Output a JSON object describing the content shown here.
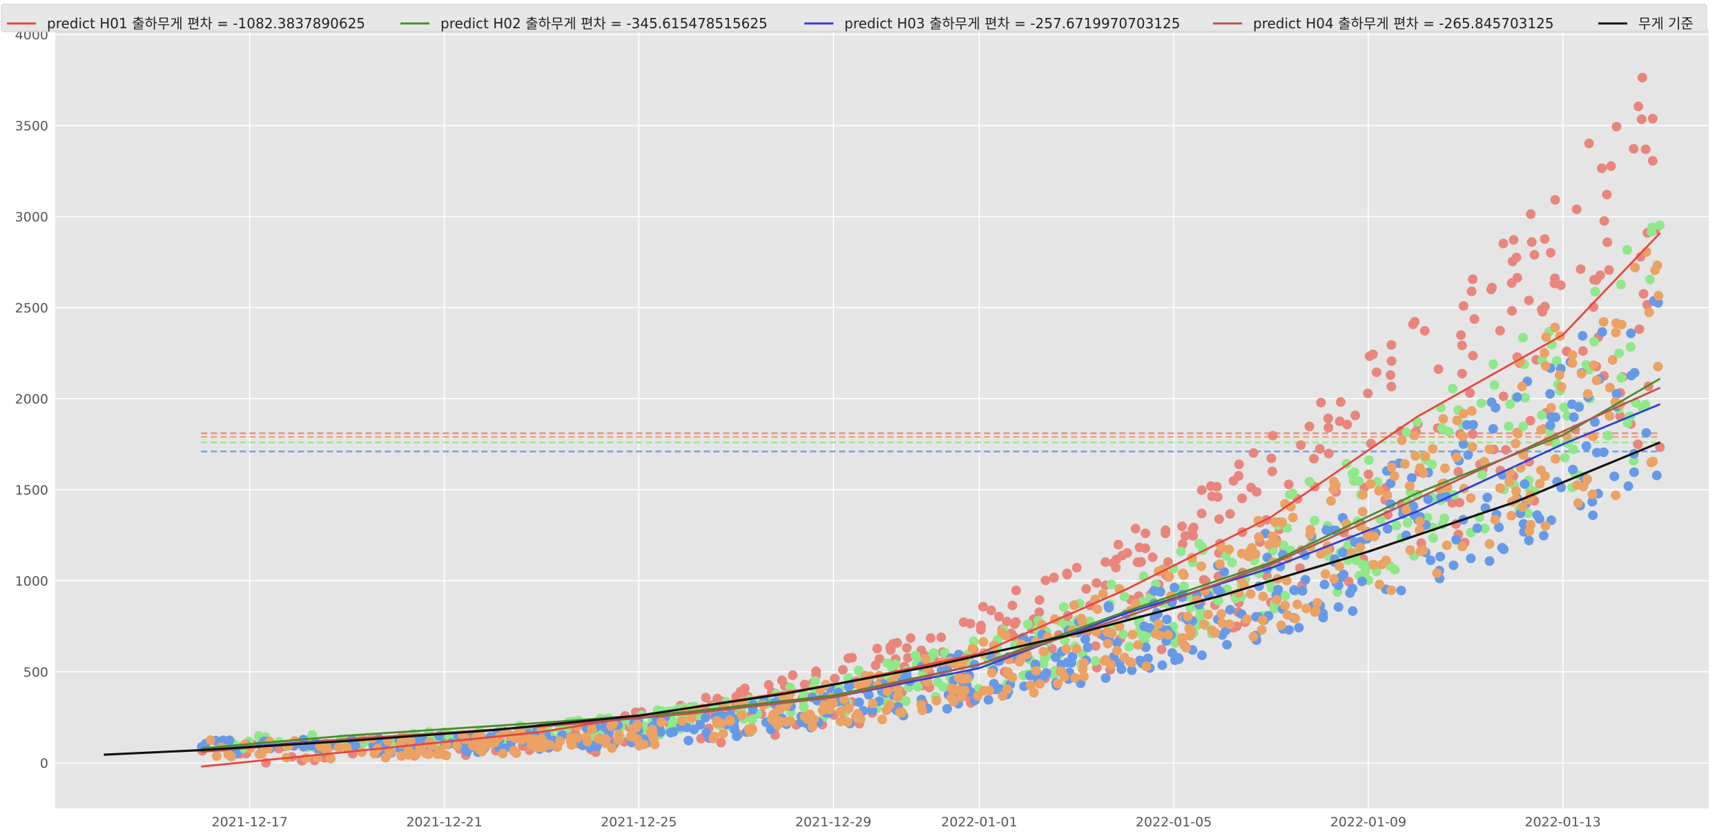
{
  "chart_data": {
    "type": "scatter",
    "style": "ggplot",
    "grid": true,
    "legend_position": "top",
    "xlabel": "",
    "ylabel": "",
    "xlim": [
      "2021-12-13",
      "2022-01-16"
    ],
    "ylim": [
      -250,
      4030
    ],
    "x_ticks": [
      "2021-12-17",
      "2021-12-21",
      "2021-12-25",
      "2021-12-29",
      "2022-01-01",
      "2022-01-05",
      "2022-01-09",
      "2022-01-13"
    ],
    "y_ticks": [
      0,
      500,
      1000,
      1500,
      2000,
      2500,
      3000,
      3500,
      4000
    ],
    "legend": [
      {
        "label": "predict H01 출하무게 편차 = -1082.3837890625",
        "color": "#e8453c"
      },
      {
        "label": "predict H02 출하무게 편차 = -345.615478515625",
        "color": "#4a8c2a"
      },
      {
        "label": "predict H03 출하무게 편차 = -257.6719970703125",
        "color": "#2f3fd6"
      },
      {
        "label": "predict H04 출하무게 편차 = -265.845703125",
        "color": "#b5554e"
      },
      {
        "label": "무게 기준",
        "color": "#111111"
      }
    ],
    "scatter_series": [
      {
        "name": "H01 scatter",
        "color": "#e8867d",
        "band_low": [
          -30,
          1300
        ],
        "band_high": [
          120,
          3900
        ]
      },
      {
        "name": "H02 scatter",
        "color": "#8fe88a",
        "band_low": [
          60,
          1500
        ],
        "band_high": [
          150,
          3000
        ]
      },
      {
        "name": "H03 scatter",
        "color": "#6699e8",
        "band_low": [
          20,
          1300
        ],
        "band_high": [
          130,
          2700
        ]
      },
      {
        "name": "H04 scatter",
        "color": "#eba264",
        "band_low": [
          0,
          1350
        ],
        "band_high": [
          130,
          2950
        ]
      }
    ],
    "line_series": [
      {
        "name": "predict H01",
        "color": "#e8453c",
        "x": [
          "2021-12-16",
          "2021-12-19",
          "2021-12-23",
          "2021-12-26",
          "2021-12-29",
          "2022-01-01",
          "2022-01-04",
          "2022-01-07",
          "2022-01-10",
          "2022-01-13",
          "2022-01-15"
        ],
        "y": [
          -20,
          60,
          170,
          300,
          430,
          600,
          950,
          1350,
          1900,
          2350,
          2910
        ]
      },
      {
        "name": "predict H02",
        "color": "#4a8c2a",
        "x": [
          "2021-12-16",
          "2021-12-19",
          "2021-12-23",
          "2021-12-26",
          "2021-12-29",
          "2022-01-01",
          "2022-01-04",
          "2022-01-07",
          "2022-01-10",
          "2022-01-13",
          "2022-01-15"
        ],
        "y": [
          80,
          150,
          220,
          280,
          370,
          540,
          830,
          1100,
          1480,
          1800,
          2110
        ]
      },
      {
        "name": "predict H03",
        "color": "#2f3fd6",
        "x": [
          "2021-12-16",
          "2021-12-19",
          "2021-12-23",
          "2021-12-26",
          "2021-12-29",
          "2022-01-01",
          "2022-01-04",
          "2022-01-07",
          "2022-01-10",
          "2022-01-13",
          "2022-01-15"
        ],
        "y": [
          70,
          130,
          200,
          270,
          360,
          520,
          820,
          1070,
          1380,
          1750,
          1970
        ]
      },
      {
        "name": "predict H04",
        "color": "#b5554e",
        "x": [
          "2021-12-16",
          "2021-12-19",
          "2021-12-23",
          "2021-12-26",
          "2021-12-29",
          "2022-01-01",
          "2022-01-04",
          "2022-01-07",
          "2022-01-10",
          "2022-01-13",
          "2022-01-15"
        ],
        "y": [
          60,
          130,
          200,
          270,
          360,
          540,
          800,
          1090,
          1450,
          1820,
          2060
        ]
      },
      {
        "name": "무게 기준",
        "color": "#111111",
        "x": [
          "2021-12-14",
          "2021-12-16",
          "2021-12-19",
          "2021-12-22",
          "2021-12-25",
          "2021-12-28",
          "2021-12-31",
          "2022-01-03",
          "2022-01-06",
          "2022-01-09",
          "2022-01-12",
          "2022-01-15"
        ],
        "y": [
          45,
          70,
          120,
          180,
          260,
          380,
          530,
          710,
          920,
          1160,
          1430,
          1760
        ]
      }
    ],
    "reference_lines": [
      {
        "y": 1810,
        "color": "#e8867d"
      },
      {
        "y": 1790,
        "color": "#eba264"
      },
      {
        "y": 1760,
        "color": "#8fe88a"
      },
      {
        "y": 1710,
        "color": "#6699e8"
      }
    ],
    "reference_xrange": [
      "2021-12-16",
      "2022-01-15"
    ]
  }
}
